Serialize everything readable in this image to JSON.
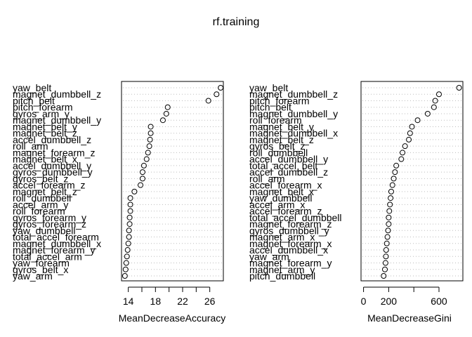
{
  "title": "rf.training",
  "chart_data": [
    {
      "type": "scatter",
      "title": "",
      "xlabel": "MeanDecreaseAccuracy",
      "ylabel": "",
      "xlim": [
        13,
        28
      ],
      "xticks": [
        14,
        18,
        22,
        26
      ],
      "grid": "dotted horizontal",
      "variables": [
        "yaw_belt",
        "magnet_dumbbell_z",
        "pitch_belt",
        "pitch_forearm",
        "gyros_arm_y",
        "magnet_dumbbell_y",
        "magnet_belt_y",
        "magnet_belt_z",
        "accel_dumbbell_z",
        "roll_arm",
        "magnet_forearm_z",
        "magnet_belt_x",
        "accel_dumbbell_y",
        "gyros_dumbbell_y",
        "gyros_belt_z",
        "accel_forearm_z",
        "magnet_belt_z",
        "roll_dumbbell",
        "accel_arm_y",
        "roll_forearm",
        "gyros_forearm_y",
        "gyros_forearm_z",
        "yaw_dumbbell",
        "total_accel_forearm",
        "magnet_dumbbell_x",
        "magnet_forearm_y",
        "total_accel_arm",
        "yaw_forearm",
        "gyros_belt_x",
        "yaw_arm"
      ],
      "values": [
        27.6,
        27.0,
        25.8,
        19.8,
        19.6,
        19.1,
        17.3,
        17.3,
        17.2,
        17.1,
        16.9,
        16.7,
        16.3,
        16.1,
        16.1,
        15.8,
        14.9,
        14.3,
        14.3,
        14.3,
        14.2,
        14.2,
        14.1,
        14.1,
        14.0,
        13.9,
        13.8,
        13.7,
        13.6,
        13.5
      ]
    },
    {
      "type": "scatter",
      "title": "",
      "xlabel": "MeanDecreaseGini",
      "ylabel": "",
      "xlim": [
        -20,
        790
      ],
      "xticks": [
        0,
        200,
        600
      ],
      "grid": "dotted horizontal",
      "variables": [
        "yaw_belt",
        "magnet_dumbbell_z",
        "pitch_forearm",
        "pitch_belt",
        "magnet_dumbbell_y",
        "roll_forearm",
        "magnet_belt_y",
        "magnet_dumbbell_x",
        "magnet_belt_z",
        "gyros_belt_z",
        "roll_dumbbell",
        "accel_dumbbell_y",
        "total_accel_belt",
        "accel_dumbbell_z",
        "roll_arm",
        "accel_forearm_x",
        "magnet_belt_x",
        "yaw_dumbbell",
        "accel_arm_x",
        "accel_forearm_z",
        "total_accel_dumbbell",
        "magnet_forearm_z",
        "gyros_dumbbell_y",
        "magnet_arm_x",
        "magnet_forearm_x",
        "accel_dumbbell_x",
        "yaw_arm",
        "magnet_forearm_y",
        "magnet_arm_y",
        "pitch_dumbbell"
      ],
      "values": [
        760,
        600,
        570,
        560,
        510,
        430,
        385,
        370,
        360,
        330,
        310,
        300,
        260,
        250,
        240,
        230,
        220,
        215,
        210,
        205,
        200,
        200,
        195,
        190,
        185,
        180,
        178,
        175,
        170,
        160
      ]
    }
  ]
}
